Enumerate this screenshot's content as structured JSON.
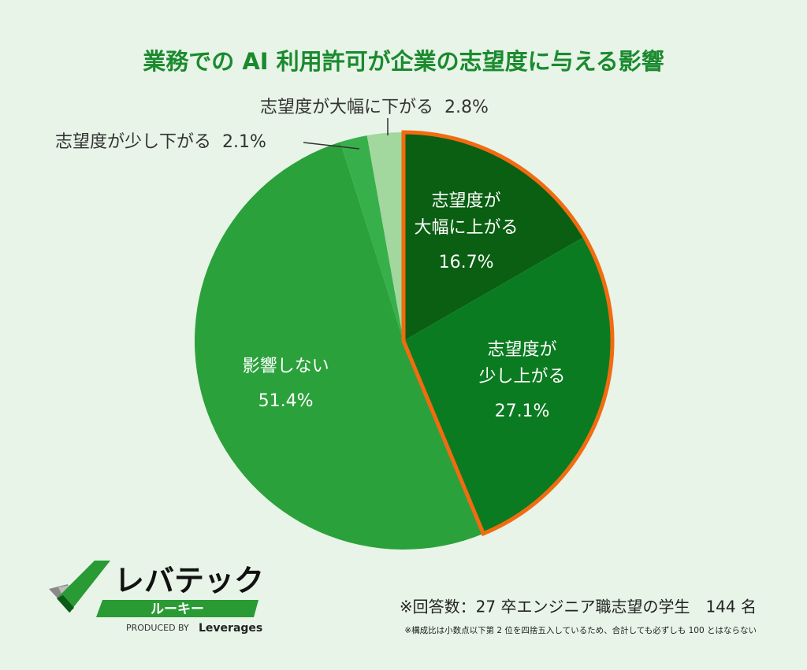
{
  "chart_data": {
    "type": "pie",
    "title": "業務での AI 利用許可が企業の志望度に与える影響",
    "categories": [
      "志望度が\n大幅に上がる",
      "志望度が\n少し上がる",
      "影響しない",
      "志望度が少し下がる",
      "志望度が大幅に下がる"
    ],
    "values": [
      16.7,
      27.1,
      51.4,
      2.1,
      2.8
    ],
    "value_labels": [
      "16.7%",
      "27.1%",
      "51.4%",
      "2.1%",
      "2.8%"
    ],
    "colors": [
      "#0a5f12",
      "#0b7b21",
      "#2ba13b",
      "#37b04b",
      "#a2d79e"
    ],
    "highlight_color": "#f26b10"
  },
  "footnotes": [
    "※回答数：27 卒エンジニア職志望の学生　144 名",
    "※構成比は小数点以下第 2 位を四捨五入しているため、合計しても必ずしも 100 とはならない"
  ],
  "logo": {
    "name": "レバテック",
    "sub": "ルーキー",
    "produced": "PRODUCED BY",
    "brand": "Leverages"
  }
}
